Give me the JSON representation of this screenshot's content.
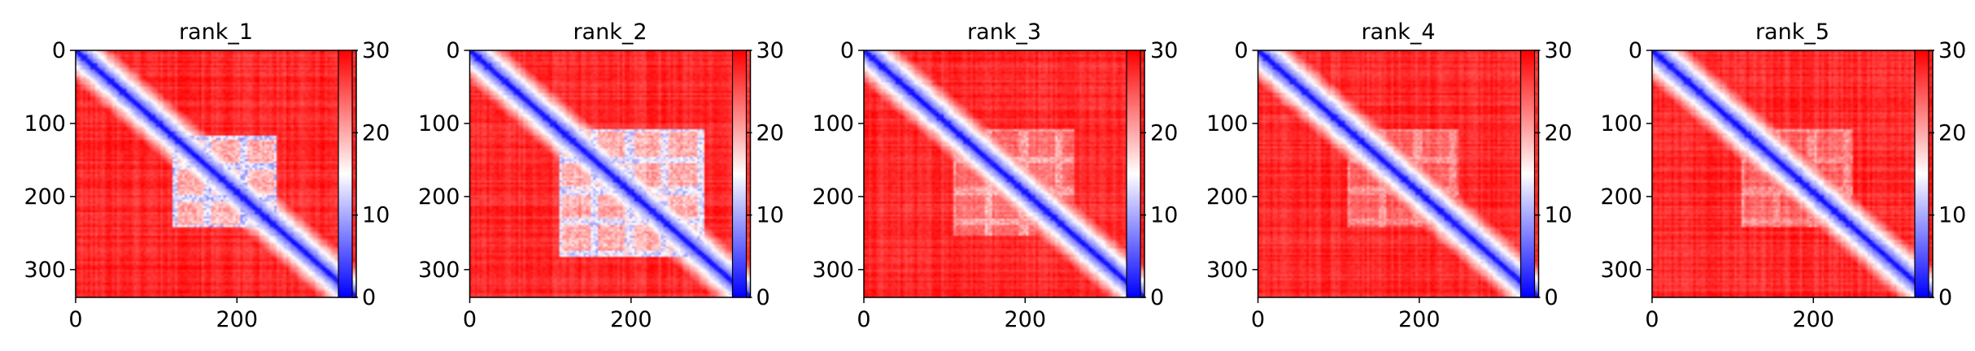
{
  "chart_data": [
    {
      "type": "heatmap",
      "title": "rank_1",
      "x_ticks": [
        0,
        200
      ],
      "y_ticks": [
        0,
        100,
        200,
        300
      ],
      "xlim": [
        0,
        348
      ],
      "ylim": [
        0,
        338
      ],
      "colorbar": {
        "ticks": [
          0,
          10,
          20,
          30
        ],
        "range": [
          0,
          30
        ],
        "colormap": "bwr",
        "colors": [
          "#0000ff",
          "#ffffff",
          "#ff0000"
        ]
      },
      "pattern": {
        "diagonal_band": true,
        "blue_block": [
          120,
          250
        ],
        "block_strength": 0.7
      }
    },
    {
      "type": "heatmap",
      "title": "rank_2",
      "x_ticks": [
        0,
        200
      ],
      "y_ticks": [
        0,
        100,
        200,
        300
      ],
      "xlim": [
        0,
        348
      ],
      "ylim": [
        0,
        338
      ],
      "colorbar": {
        "ticks": [
          0,
          10,
          20,
          30
        ],
        "range": [
          0,
          30
        ],
        "colormap": "bwr",
        "colors": [
          "#0000ff",
          "#ffffff",
          "#ff0000"
        ]
      },
      "pattern": {
        "diagonal_band": true,
        "blue_block": [
          110,
          290
        ],
        "block_strength": 0.65
      }
    },
    {
      "type": "heatmap",
      "title": "rank_3",
      "x_ticks": [
        0,
        200
      ],
      "y_ticks": [
        0,
        100,
        200,
        300
      ],
      "xlim": [
        0,
        348
      ],
      "ylim": [
        0,
        338
      ],
      "colorbar": {
        "ticks": [
          0,
          10,
          20,
          30
        ],
        "range": [
          0,
          30
        ],
        "colormap": "bwr",
        "colors": [
          "#0000ff",
          "#ffffff",
          "#ff0000"
        ]
      },
      "pattern": {
        "diagonal_band": true,
        "blue_block": [
          110,
          260
        ],
        "block_strength": 0.35
      }
    },
    {
      "type": "heatmap",
      "title": "rank_4",
      "x_ticks": [
        0,
        200
      ],
      "y_ticks": [
        0,
        100,
        200,
        300
      ],
      "xlim": [
        0,
        348
      ],
      "ylim": [
        0,
        338
      ],
      "colorbar": {
        "ticks": [
          0,
          10,
          20,
          30
        ],
        "range": [
          0,
          30
        ],
        "colormap": "bwr",
        "colors": [
          "#0000ff",
          "#ffffff",
          "#ff0000"
        ]
      },
      "pattern": {
        "diagonal_band": true,
        "blue_block": [
          110,
          250
        ],
        "block_strength": 0.3
      }
    },
    {
      "type": "heatmap",
      "title": "rank_5",
      "x_ticks": [
        0,
        200
      ],
      "y_ticks": [
        0,
        100,
        200,
        300
      ],
      "xlim": [
        0,
        348
      ],
      "ylim": [
        0,
        338
      ],
      "colorbar": {
        "ticks": [
          0,
          10,
          20,
          30
        ],
        "range": [
          0,
          30
        ],
        "colormap": "bwr",
        "colors": [
          "#0000ff",
          "#ffffff",
          "#ff0000"
        ]
      },
      "pattern": {
        "diagonal_band": true,
        "blue_block": [
          110,
          250
        ],
        "block_strength": 0.3
      }
    }
  ]
}
